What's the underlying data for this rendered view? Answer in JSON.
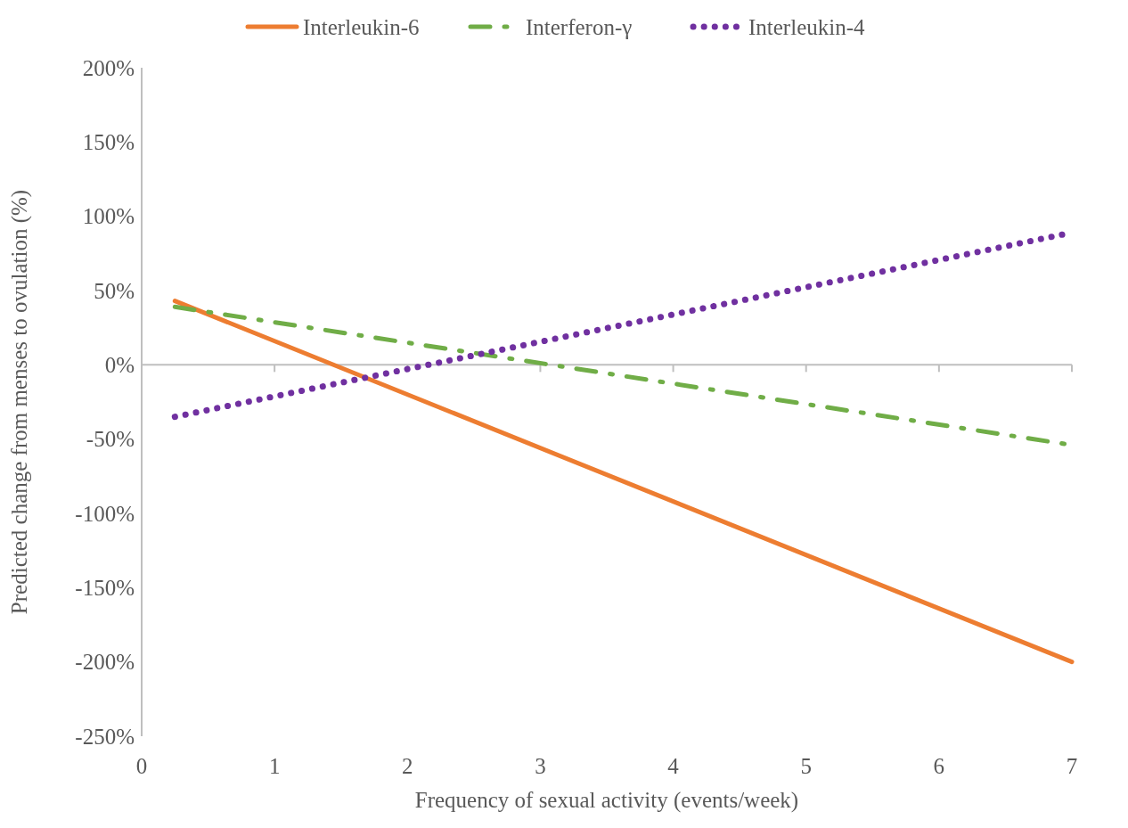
{
  "chart_data": {
    "type": "line",
    "xlabel": "Frequency of sexual activity (events/week)",
    "ylabel": "Predicted change from menses to ovulation (%)",
    "xlim": [
      0,
      7
    ],
    "xticks": [
      0,
      1,
      2,
      3,
      4,
      5,
      6,
      7
    ],
    "ylim": [
      -250,
      200
    ],
    "yticks": [
      {
        "value": -250,
        "label": "-250%"
      },
      {
        "value": -200,
        "label": "-200%"
      },
      {
        "value": -150,
        "label": "-150%"
      },
      {
        "value": -100,
        "label": "-100%"
      },
      {
        "value": -50,
        "label": "-50%"
      },
      {
        "value": 0,
        "label": "0%"
      },
      {
        "value": 50,
        "label": "50%"
      },
      {
        "value": 100,
        "label": "100%"
      },
      {
        "value": 150,
        "label": "150%"
      },
      {
        "value": 200,
        "label": "200%"
      }
    ],
    "x": [
      0.25,
      7
    ],
    "legend": "top",
    "grid": false,
    "marker": "none",
    "ref_lines": [
      {
        "axis": "y",
        "value": 0,
        "color": "#bfbfbf"
      }
    ],
    "series": [
      {
        "name": "Interleukin-6",
        "color": "#ed7d31",
        "line_style": "solid",
        "values": [
          43,
          -200
        ]
      },
      {
        "name": "Interferon-γ",
        "color": "#70ad47",
        "line_style": "dashed",
        "values": [
          39,
          -54
        ]
      },
      {
        "name": "Interleukin-4",
        "color": "#7030a0",
        "line_style": "dotted",
        "values": [
          -35,
          89
        ]
      }
    ]
  }
}
